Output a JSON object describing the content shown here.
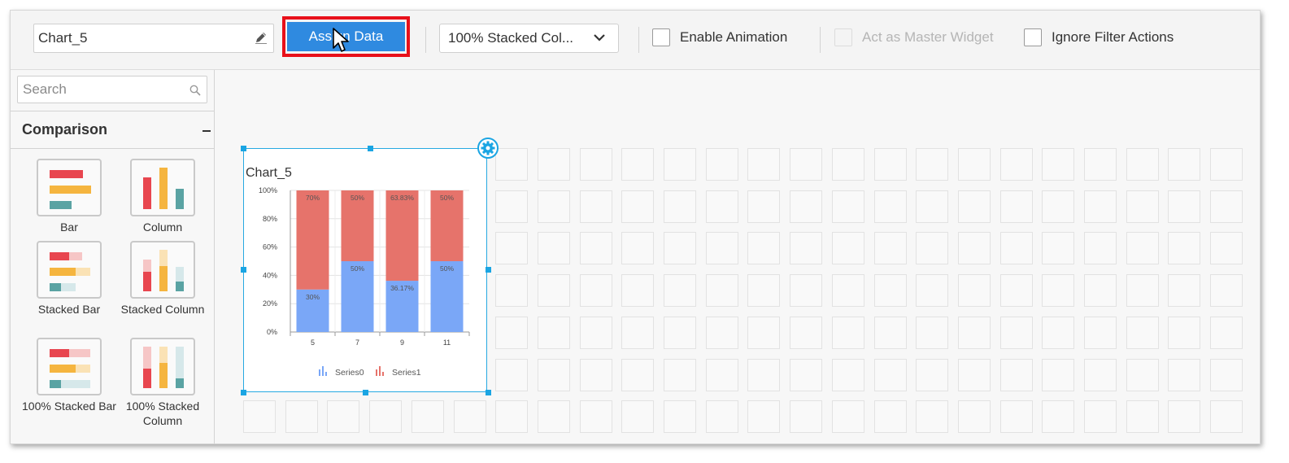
{
  "toolbar": {
    "widget_name": "Chart_5",
    "assign_label": "Assign Data",
    "chart_type": "100% Stacked Col...",
    "enable_animation": "Enable Animation",
    "master_widget": "Act as Master Widget",
    "ignore_filter": "Ignore Filter Actions",
    "icons": [
      "pencil-icon",
      "chevron-down-icon"
    ]
  },
  "sidebar": {
    "search_placeholder": "Search",
    "category": "Comparison",
    "items": [
      {
        "label": "Bar"
      },
      {
        "label": "Column"
      },
      {
        "label": "Stacked Bar"
      },
      {
        "label": "Stacked Column"
      },
      {
        "label": "100% Stacked Bar"
      },
      {
        "label": "100% Stacked Column"
      }
    ]
  },
  "widget": {
    "title": "Chart_5"
  },
  "colors": {
    "accent": "#2f8ae0",
    "highlight": "#e8101a",
    "selection": "#27a9e1",
    "series0": "#7aa7f7",
    "series1": "#e6736b"
  },
  "chart_data": {
    "type": "bar",
    "stacking": "100%",
    "categories": [
      "5",
      "7",
      "9",
      "11"
    ],
    "series": [
      {
        "name": "Series0",
        "values": [
          30,
          50,
          36.17,
          50
        ],
        "labels": [
          "30%",
          "50%",
          "36.17%",
          "50%"
        ],
        "color": "#7aa7f7"
      },
      {
        "name": "Series1",
        "values": [
          70,
          50,
          63.83,
          50
        ],
        "labels": [
          "70%",
          "50%",
          "63.83%",
          "50%"
        ],
        "color": "#e6736b"
      }
    ],
    "yticks": [
      "0%",
      "20%",
      "40%",
      "60%",
      "80%",
      "100%"
    ],
    "ylim": [
      0,
      100
    ],
    "legend": "bottom",
    "grid": true
  }
}
